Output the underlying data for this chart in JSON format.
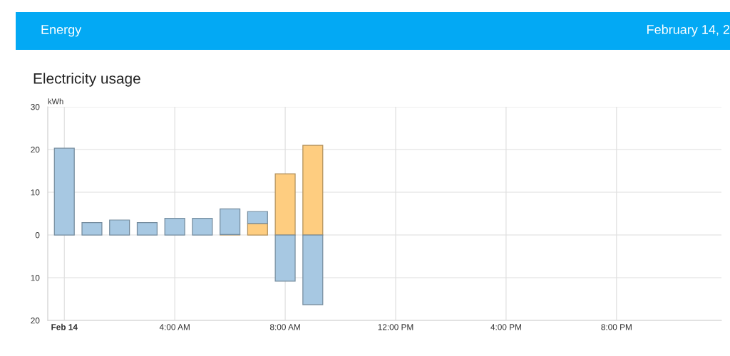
{
  "chart_data": {
    "type": "bar",
    "title": "Electricity usage",
    "ylabel": "kWh",
    "annotations": [
      "Energy",
      "February 14, 2"
    ],
    "x": [
      0,
      1,
      2,
      3,
      4,
      5,
      6,
      7,
      8,
      9
    ],
    "stacked": true,
    "series": [
      {
        "color": "#fecd80",
        "values": [
          null,
          null,
          null,
          null,
          null,
          null,
          0.1,
          2.7,
          14.3,
          21.0
        ]
      },
      {
        "color": "#a7c8e2",
        "values": [
          20.3,
          2.9,
          3.5,
          2.9,
          3.9,
          3.9,
          6.0,
          2.8,
          null,
          null
        ]
      },
      {
        "color": "#a7c8e2",
        "values": [
          null,
          null,
          null,
          null,
          null,
          null,
          null,
          null,
          -10.8,
          -16.3
        ]
      }
    ],
    "xlim": [
      -0.6,
      23.8
    ],
    "xticks": [
      {
        "value": 0,
        "label": "Feb 14"
      },
      {
        "value": 4,
        "label": "4:00 AM"
      },
      {
        "value": 8,
        "label": "8:00 AM"
      },
      {
        "value": 12,
        "label": "12:00 PM"
      },
      {
        "value": 16,
        "label": "4:00 PM"
      },
      {
        "value": 20,
        "label": "8:00 PM"
      }
    ],
    "ylim": [
      -20,
      30
    ],
    "yticks": [
      {
        "value": -20,
        "label": "20"
      },
      {
        "value": -10,
        "label": "10"
      },
      0,
      10,
      20,
      30
    ],
    "grid": true
  }
}
